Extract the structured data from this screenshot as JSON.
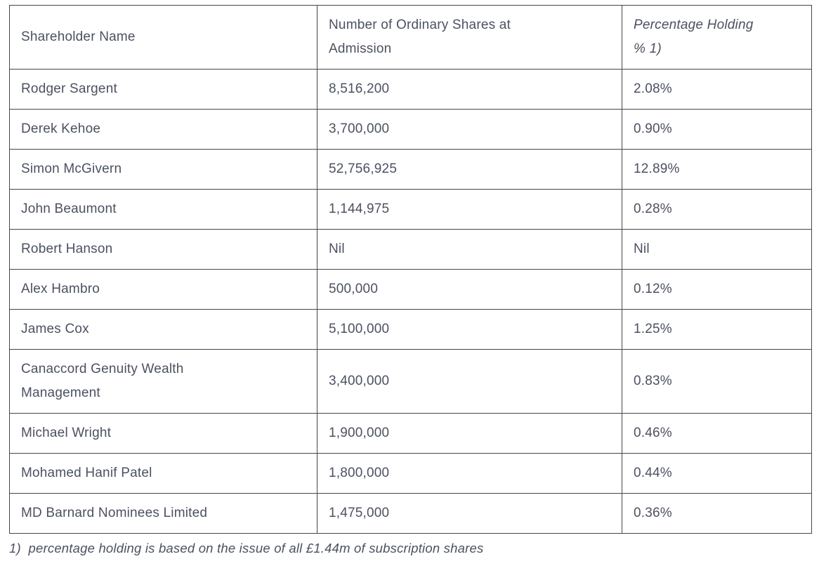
{
  "table": {
    "columns": [
      {
        "label": "Shareholder Name",
        "italic": false
      },
      {
        "label": "Number of Ordinary Shares at\nAdmission",
        "italic": false
      },
      {
        "label": "Percentage Holding\n% 1)",
        "italic": true
      }
    ],
    "rows": [
      [
        "Rodger Sargent",
        "8,516,200",
        "2.08%"
      ],
      [
        "Derek Kehoe",
        "3,700,000",
        "0.90%"
      ],
      [
        "Simon McGivern",
        "52,756,925",
        "12.89%"
      ],
      [
        "John Beaumont",
        "1,144,975",
        "0.28%"
      ],
      [
        "Robert Hanson",
        "Nil",
        "Nil"
      ],
      [
        "Alex Hambro",
        "500,000",
        "0.12%"
      ],
      [
        "James Cox",
        "5,100,000",
        "1.25%"
      ],
      [
        "Canaccord Genuity Wealth\nManagement",
        "3,400,000",
        "0.83%"
      ],
      [
        "Michael Wright",
        "1,900,000",
        "0.46%"
      ],
      [
        "Mohamed Hanif Patel",
        "1,800,000",
        "0.44%"
      ],
      [
        "MD Barnard Nominees Limited",
        "1,475,000",
        "0.36%"
      ]
    ]
  },
  "footnote": "1)  percentage holding is based on the issue of all £1.44m of subscription shares",
  "colors": {
    "text": "#4b5160",
    "border": "#42464c",
    "background": "#ffffff"
  }
}
